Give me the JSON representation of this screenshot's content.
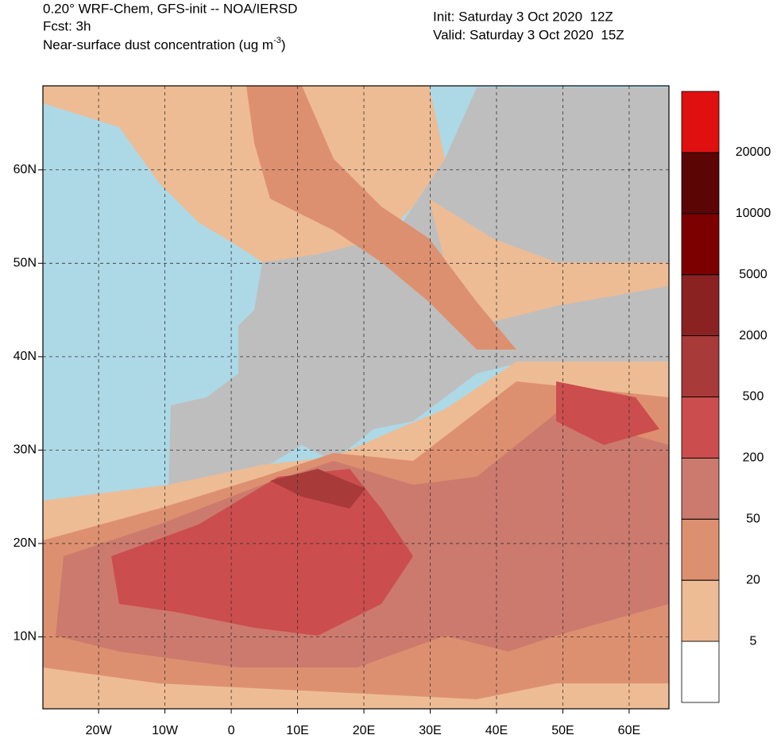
{
  "header": {
    "left": [
      "0.20° WRF-Chem, GFS-init -- NOA/IERSD",
      "Fcst: 3h"
    ],
    "variable": [
      "Near-surface dust concentration (ug m",
      "-3",
      ")"
    ],
    "init": "Init: Saturday 3 Oct 2020  12Z",
    "valid": "Valid: Saturday 3 Oct 2020  15Z"
  },
  "map": {
    "lonlim": [
      -28.4,
      66
    ],
    "latlim": [
      2.3,
      69
    ],
    "lonticks": [
      {
        "value": -20,
        "label": "20W"
      },
      {
        "value": -10,
        "label": "10W"
      },
      0,
      {
        "value": 10,
        "label": "10E"
      },
      {
        "value": 20,
        "label": "20E"
      },
      {
        "value": 30,
        "label": "30E"
      },
      {
        "value": 40,
        "label": "40E"
      },
      {
        "value": 50,
        "label": "50E"
      },
      {
        "value": 60,
        "label": "60E"
      }
    ],
    "latticks": [
      {
        "value": 10,
        "label": "10N"
      },
      {
        "value": 20,
        "label": "20N"
      },
      {
        "value": 30,
        "label": "30N"
      },
      {
        "value": 40,
        "label": "40N"
      },
      {
        "value": 50,
        "label": "50N"
      },
      {
        "value": 60,
        "label": "60N"
      }
    ],
    "grid": true
  },
  "colorbar": {
    "levels": [
      5,
      20,
      50,
      200,
      500,
      2000,
      5000,
      10000,
      20000
    ],
    "colors": [
      "#ffffff",
      "#edbc94",
      "#dd9070",
      "#cc7a6e",
      "#cc4d4d",
      "#a83a3a",
      "#8b2222",
      "#7d0000",
      "#5c0505",
      "#e01010"
    ]
  }
}
